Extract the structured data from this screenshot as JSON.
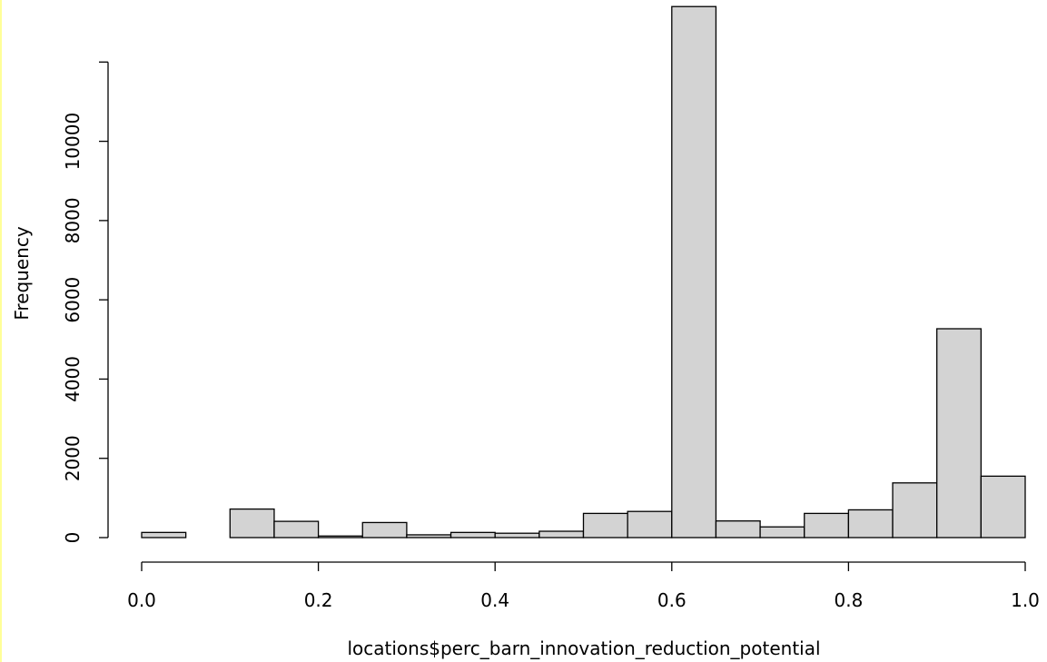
{
  "chart_data": {
    "type": "bar",
    "histogram": true,
    "title": "",
    "xlabel": "locations$perc_barn_innovation_reduction_potential",
    "ylabel": "Frequency",
    "bin_edges": [
      0.0,
      0.05,
      0.1,
      0.15,
      0.2,
      0.25,
      0.3,
      0.35,
      0.4,
      0.45,
      0.5,
      0.55,
      0.6,
      0.65,
      0.7,
      0.75,
      0.8,
      0.85,
      0.9,
      0.95,
      1.0
    ],
    "values": [
      130,
      0,
      720,
      410,
      40,
      380,
      70,
      130,
      110,
      160,
      610,
      660,
      13400,
      420,
      270,
      610,
      700,
      1380,
      5270,
      1550
    ],
    "xlim": [
      0.0,
      1.0
    ],
    "ylim": [
      0,
      12000
    ],
    "x_ticks": [
      0.0,
      0.2,
      0.4,
      0.6,
      0.8,
      1.0
    ],
    "x_tick_labels": [
      "0.0",
      "0.2",
      "0.4",
      "0.6",
      "0.8",
      "1.0"
    ],
    "y_ticks": [
      0,
      2000,
      4000,
      6000,
      8000,
      10000
    ],
    "y_tick_labels": [
      "0",
      "2000",
      "4000",
      "6000",
      "8000",
      "10000"
    ],
    "grid": false,
    "bar_fill": "#d3d3d3",
    "bar_stroke": "#000000"
  }
}
